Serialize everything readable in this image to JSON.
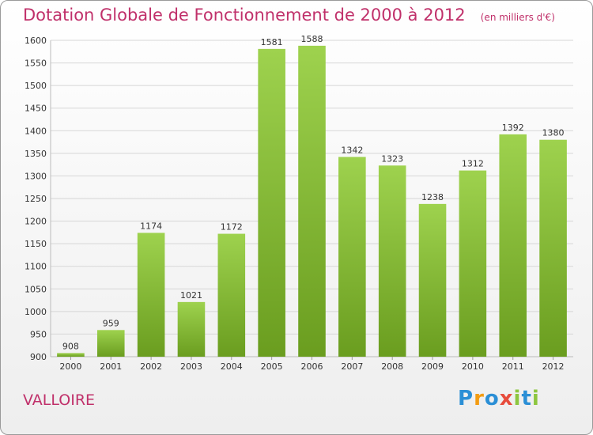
{
  "header": {
    "title": "Dotation Globale de Fonctionnement de 2000 à 2012",
    "subtitle": "(en milliers d'€)"
  },
  "footer": {
    "commune": "VALLOIRE",
    "logo_letters": [
      "P",
      "r",
      "o",
      "x",
      "i",
      "t",
      "i"
    ],
    "logo_colors": [
      "#2b8fd6",
      "#f39c12",
      "#2b8fd6",
      "#e74c3c",
      "#8dc63f",
      "#2b8fd6",
      "#8dc63f"
    ]
  },
  "colors": {
    "bar_top": "#9ed24e",
    "bar_bottom": "#6a9d1f",
    "title": "#c0306a"
  },
  "chart_data": {
    "type": "bar",
    "title": "Dotation Globale de Fonctionnement de 2000 à 2012",
    "subtitle": "(en milliers d'€)",
    "categories": [
      "2000",
      "2001",
      "2002",
      "2003",
      "2004",
      "2005",
      "2006",
      "2007",
      "2008",
      "2009",
      "2010",
      "2011",
      "2012"
    ],
    "values": [
      908,
      959,
      1174,
      1021,
      1172,
      1581,
      1588,
      1342,
      1323,
      1238,
      1312,
      1392,
      1380
    ],
    "ylim": [
      900,
      1600
    ],
    "yticks": [
      900,
      950,
      1000,
      1050,
      1100,
      1150,
      1200,
      1250,
      1300,
      1350,
      1400,
      1450,
      1500,
      1550,
      1600
    ],
    "grid": true,
    "data_labels": true
  }
}
